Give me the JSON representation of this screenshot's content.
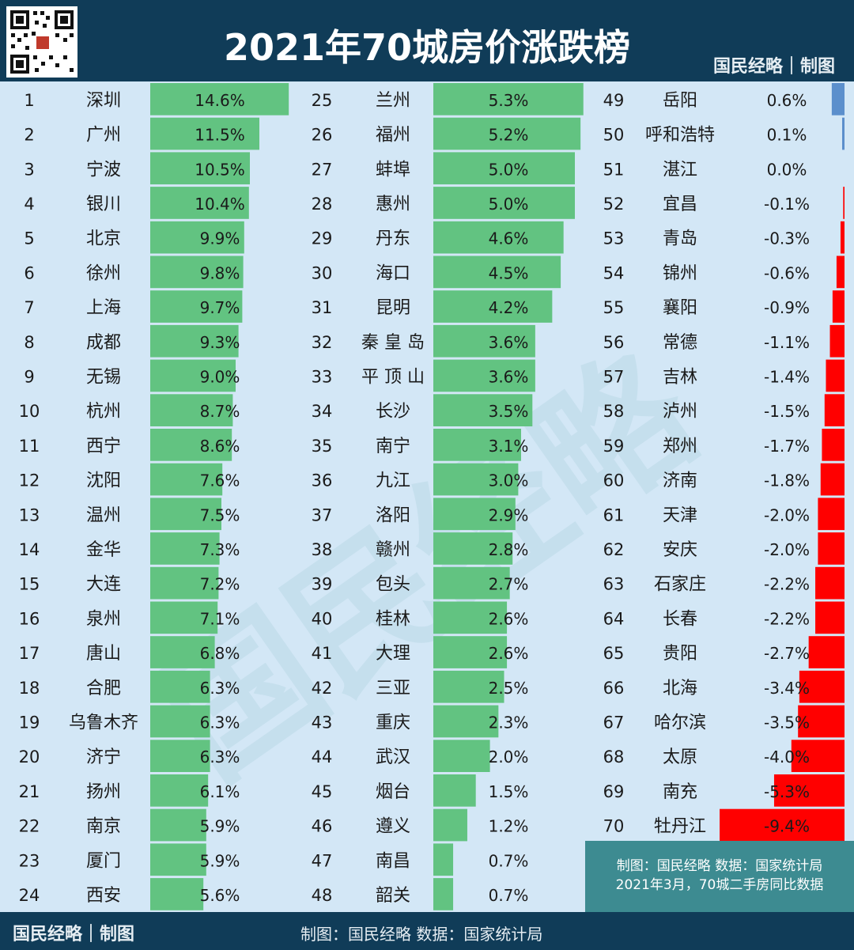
{
  "header": {
    "title": "2021年70城房价涨跌榜",
    "brand": "国民经略｜制图",
    "qr_icon": "qr-code-icon"
  },
  "watermark": "国民经略",
  "note": {
    "line1": "制图：国民经略  数据：国家统计局",
    "line2": "2021年3月，70城二手房同比数据"
  },
  "footer": {
    "brand": "国民经略｜制图",
    "source": "制图：国民经略 数据：国家统计局"
  },
  "colors": {
    "positive": "#62c381",
    "negative": "#ff0000",
    "small_positive": "#5b8fcc",
    "background": "#d3e7f6",
    "frame": "#103c58"
  },
  "chart_data": {
    "type": "bar",
    "orientation": "horizontal",
    "unit": "%",
    "title": "2021年70城房价涨跌榜",
    "columns": 3,
    "rows": [
      {
        "rank": "1",
        "city": "深圳",
        "value": 14.6,
        "label": "14.6%"
      },
      {
        "rank": "2",
        "city": "广州",
        "value": 11.5,
        "label": "11.5%"
      },
      {
        "rank": "3",
        "city": "宁波",
        "value": 10.5,
        "label": "10.5%"
      },
      {
        "rank": "4",
        "city": "银川",
        "value": 10.4,
        "label": "10.4%"
      },
      {
        "rank": "5",
        "city": "北京",
        "value": 9.9,
        "label": "9.9%"
      },
      {
        "rank": "6",
        "city": "徐州",
        "value": 9.8,
        "label": "9.8%"
      },
      {
        "rank": "7",
        "city": "上海",
        "value": 9.7,
        "label": "9.7%"
      },
      {
        "rank": "8",
        "city": "成都",
        "value": 9.3,
        "label": "9.3%"
      },
      {
        "rank": "9",
        "city": "无锡",
        "value": 9.0,
        "label": "9.0%"
      },
      {
        "rank": "10",
        "city": "杭州",
        "value": 8.7,
        "label": "8.7%"
      },
      {
        "rank": "11",
        "city": "西宁",
        "value": 8.6,
        "label": "8.6%"
      },
      {
        "rank": "12",
        "city": "沈阳",
        "value": 7.6,
        "label": "7.6%"
      },
      {
        "rank": "13",
        "city": "温州",
        "value": 7.5,
        "label": "7.5%"
      },
      {
        "rank": "14",
        "city": "金华",
        "value": 7.3,
        "label": "7.3%"
      },
      {
        "rank": "15",
        "city": "大连",
        "value": 7.2,
        "label": "7.2%"
      },
      {
        "rank": "16",
        "city": "泉州",
        "value": 7.1,
        "label": "7.1%"
      },
      {
        "rank": "17",
        "city": "唐山",
        "value": 6.8,
        "label": "6.8%"
      },
      {
        "rank": "18",
        "city": "合肥",
        "value": 6.3,
        "label": "6.3%"
      },
      {
        "rank": "19",
        "city": "乌鲁木齐",
        "value": 6.3,
        "label": "6.3%"
      },
      {
        "rank": "20",
        "city": "济宁",
        "value": 6.3,
        "label": "6.3%"
      },
      {
        "rank": "21",
        "city": "扬州",
        "value": 6.1,
        "label": "6.1%"
      },
      {
        "rank": "22",
        "city": "南京",
        "value": 5.9,
        "label": "5.9%"
      },
      {
        "rank": "23",
        "city": "厦门",
        "value": 5.9,
        "label": "5.9%"
      },
      {
        "rank": "24",
        "city": "西安",
        "value": 5.6,
        "label": "5.6%"
      },
      {
        "rank": "25",
        "city": "兰州",
        "value": 5.3,
        "label": "5.3%"
      },
      {
        "rank": "26",
        "city": "福州",
        "value": 5.2,
        "label": "5.2%"
      },
      {
        "rank": "27",
        "city": "蚌埠",
        "value": 5.0,
        "label": "5.0%"
      },
      {
        "rank": "28",
        "city": "惠州",
        "value": 5.0,
        "label": "5.0%"
      },
      {
        "rank": "29",
        "city": "丹东",
        "value": 4.6,
        "label": "4.6%"
      },
      {
        "rank": "30",
        "city": "海口",
        "value": 4.5,
        "label": "4.5%"
      },
      {
        "rank": "31",
        "city": "昆明",
        "value": 4.2,
        "label": "4.2%"
      },
      {
        "rank": "32",
        "city": "秦 皇 岛",
        "value": 3.6,
        "label": "3.6%"
      },
      {
        "rank": "33",
        "city": "平 顶 山",
        "value": 3.6,
        "label": "3.6%"
      },
      {
        "rank": "34",
        "city": "长沙",
        "value": 3.5,
        "label": "3.5%"
      },
      {
        "rank": "35",
        "city": "南宁",
        "value": 3.1,
        "label": "3.1%"
      },
      {
        "rank": "36",
        "city": "九江",
        "value": 3.0,
        "label": "3.0%"
      },
      {
        "rank": "37",
        "city": "洛阳",
        "value": 2.9,
        "label": "2.9%"
      },
      {
        "rank": "38",
        "city": "赣州",
        "value": 2.8,
        "label": "2.8%"
      },
      {
        "rank": "39",
        "city": "包头",
        "value": 2.7,
        "label": "2.7%"
      },
      {
        "rank": "40",
        "city": "桂林",
        "value": 2.6,
        "label": "2.6%"
      },
      {
        "rank": "41",
        "city": "大理",
        "value": 2.6,
        "label": "2.6%"
      },
      {
        "rank": "42",
        "city": "三亚",
        "value": 2.5,
        "label": "2.5%"
      },
      {
        "rank": "43",
        "city": "重庆",
        "value": 2.3,
        "label": "2.3%"
      },
      {
        "rank": "44",
        "city": "武汉",
        "value": 2.0,
        "label": "2.0%"
      },
      {
        "rank": "45",
        "city": "烟台",
        "value": 1.5,
        "label": "1.5%"
      },
      {
        "rank": "46",
        "city": "遵义",
        "value": 1.2,
        "label": "1.2%"
      },
      {
        "rank": "47",
        "city": "南昌",
        "value": 0.7,
        "label": "0.7%"
      },
      {
        "rank": "48",
        "city": "韶关",
        "value": 0.7,
        "label": "0.7%"
      },
      {
        "rank": "49",
        "city": "岳阳",
        "value": 0.6,
        "label": "0.6%"
      },
      {
        "rank": "50",
        "city": "呼和浩特",
        "value": 0.1,
        "label": "0.1%"
      },
      {
        "rank": "51",
        "city": "湛江",
        "value": 0.0,
        "label": "0.0%"
      },
      {
        "rank": "52",
        "city": "宜昌",
        "value": -0.1,
        "label": "-0.1%"
      },
      {
        "rank": "53",
        "city": "青岛",
        "value": -0.3,
        "label": "-0.3%"
      },
      {
        "rank": "54",
        "city": "锦州",
        "value": -0.6,
        "label": "-0.6%"
      },
      {
        "rank": "55",
        "city": "襄阳",
        "value": -0.9,
        "label": "-0.9%"
      },
      {
        "rank": "56",
        "city": "常德",
        "value": -1.1,
        "label": "-1.1%"
      },
      {
        "rank": "57",
        "city": "吉林",
        "value": -1.4,
        "label": "-1.4%"
      },
      {
        "rank": "58",
        "city": "泸州",
        "value": -1.5,
        "label": "-1.5%"
      },
      {
        "rank": "59",
        "city": "郑州",
        "value": -1.7,
        "label": "-1.7%"
      },
      {
        "rank": "60",
        "city": "济南",
        "value": -1.8,
        "label": "-1.8%"
      },
      {
        "rank": "61",
        "city": "天津",
        "value": -2.0,
        "label": "-2.0%"
      },
      {
        "rank": "62",
        "city": "安庆",
        "value": -2.0,
        "label": "-2.0%"
      },
      {
        "rank": "63",
        "city": "石家庄",
        "value": -2.2,
        "label": "-2.2%"
      },
      {
        "rank": "64",
        "city": "长春",
        "value": -2.2,
        "label": "-2.2%"
      },
      {
        "rank": "65",
        "city": "贵阳",
        "value": -2.7,
        "label": "-2.7%"
      },
      {
        "rank": "66",
        "city": "北海",
        "value": -3.4,
        "label": "-3.4%"
      },
      {
        "rank": "67",
        "city": "哈尔滨",
        "value": -3.5,
        "label": "-3.5%"
      },
      {
        "rank": "68",
        "city": "太原",
        "value": -4.0,
        "label": "-4.0%"
      },
      {
        "rank": "69",
        "city": "南充",
        "value": -5.3,
        "label": "-5.3%"
      },
      {
        "rank": "70",
        "city": "牡丹江",
        "value": -9.4,
        "label": "-9.4%"
      }
    ]
  }
}
